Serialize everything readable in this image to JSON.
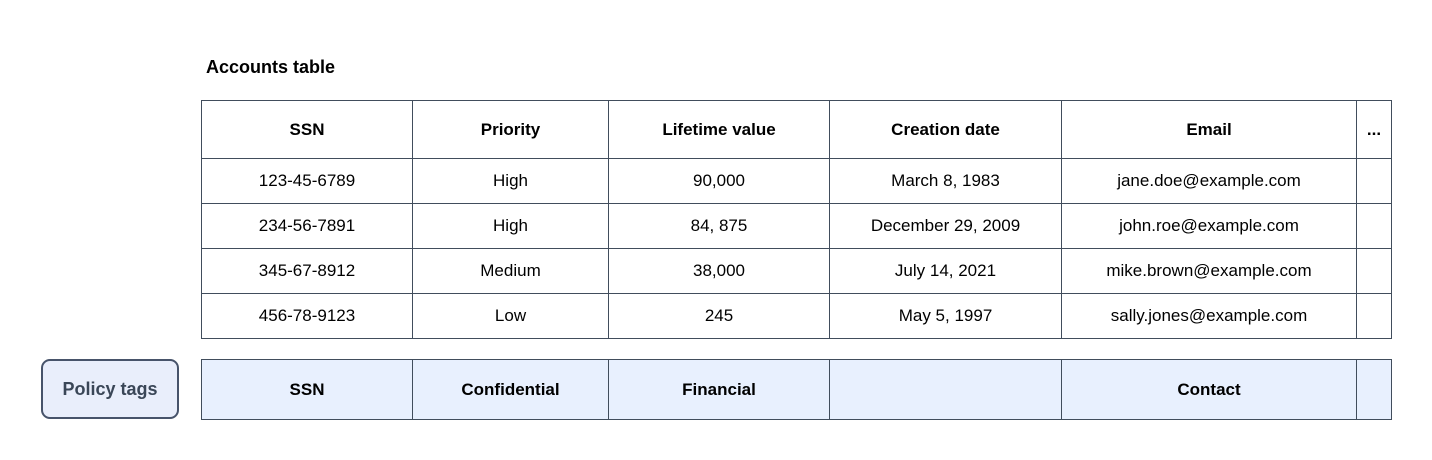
{
  "accounts_table": {
    "title": "Accounts table",
    "columns": [
      "SSN",
      "Priority",
      "Lifetime value",
      "Creation date",
      "Email",
      "..."
    ],
    "rows": [
      [
        "123-45-6789",
        "High",
        "90,000",
        "March 8, 1983",
        "jane.doe@example.com",
        ""
      ],
      [
        "234-56-7891",
        "High",
        "84, 875",
        "December 29, 2009",
        "john.roe@example.com",
        ""
      ],
      [
        "345-67-8912",
        "Medium",
        "38,000",
        "July 14, 2021",
        "mike.brown@example.com",
        ""
      ],
      [
        "456-78-9123",
        "Low",
        "245",
        "May 5, 1997",
        "sally.jones@example.com",
        ""
      ]
    ]
  },
  "policy": {
    "button_label": "Policy tags",
    "tags": [
      "SSN",
      "Confidential",
      "Financial",
      "",
      "Contact",
      ""
    ]
  },
  "colors": {
    "table_border": "#414d5c",
    "policy_bg": "#e8f0fe",
    "button_bg": "#e9eefb",
    "button_border": "#47536a",
    "button_text": "#3a4657"
  }
}
